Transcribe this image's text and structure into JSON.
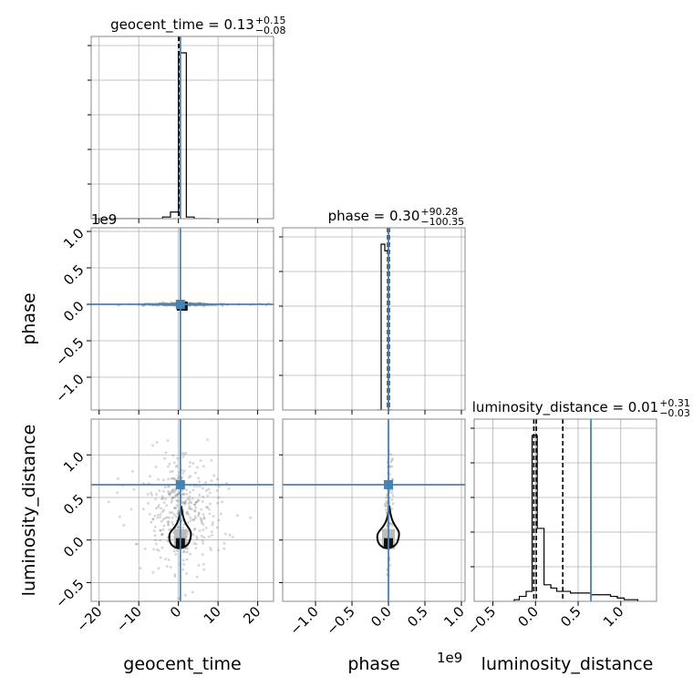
{
  "chart_data": {
    "type": "corner",
    "parameters": [
      "geocent_time",
      "phase",
      "luminosity_distance"
    ],
    "axis_labels": {
      "x": [
        "geocent_time",
        "phase",
        "luminosity_distance"
      ],
      "y": [
        "phase",
        "luminosity_distance"
      ]
    },
    "offset_texts": {
      "phase_y": "1e9",
      "phase_x": "1e9"
    },
    "titles": [
      {
        "param": "geocent_time",
        "text": "geocent_time = 0.13",
        "plus": "+0.15",
        "minus": "−0.08"
      },
      {
        "param": "phase",
        "text": "phase = 0.30",
        "plus": "+90.28",
        "minus": "−100.35"
      },
      {
        "param": "luminosity_distance",
        "text": "luminosity_distance = 0.01",
        "plus": "+0.31",
        "minus": "−0.03"
      }
    ],
    "truths": {
      "geocent_time": 0.5,
      "phase": 0.0,
      "luminosity_distance": 0.65
    },
    "axes": {
      "geocent_time": {
        "range": [
          -22,
          24
        ],
        "ticks": [
          -20,
          -10,
          0,
          10,
          20
        ],
        "tick_labels": [
          "−20",
          "−10",
          "0",
          "10",
          "20"
        ]
      },
      "phase": {
        "range": [
          -1.45,
          1.05
        ],
        "ticks": [
          -1.0,
          -0.5,
          0.0,
          0.5,
          1.0
        ],
        "tick_labels": [
          "−1.0",
          "−0.5",
          "0.0",
          "0.5",
          "1.0"
        ],
        "scale": "1e9"
      },
      "luminosity_distance": {
        "range": [
          -0.72,
          1.42
        ],
        "ticks": [
          -0.5,
          0.0,
          0.5,
          1.0
        ],
        "tick_labels": [
          "−0.5",
          "0.0",
          "0.5",
          "1.0"
        ]
      }
    },
    "hist_1d": {
      "geocent_time": {
        "edges": [
          -22,
          -20,
          -18,
          -16,
          -14,
          -12,
          -10,
          -8,
          -6,
          -4,
          -2,
          0,
          2,
          4,
          6,
          8
        ],
        "values": [
          0,
          0,
          0,
          0,
          0,
          0,
          0,
          0,
          0,
          0.01,
          0.04,
          1.0,
          0.01,
          0,
          0
        ],
        "quantile_lines": [
          0.05,
          0.13,
          0.28
        ]
      },
      "phase": {
        "edges": [
          -0.15,
          -0.1,
          -0.05,
          0.0,
          0.05
        ],
        "values": [
          0,
          1.0,
          0.96,
          0
        ],
        "quantile_lines": [
          -0.01,
          0.0,
          0.01
        ]
      },
      "luminosity_distance": {
        "edges": [
          -0.25,
          -0.19,
          -0.11,
          -0.04,
          0.02,
          0.1,
          0.18,
          0.25,
          0.33,
          0.41,
          0.49,
          0.57,
          0.65,
          0.73,
          0.8,
          0.88,
          0.96,
          1.04,
          1.12,
          1.2
        ],
        "values": [
          0.01,
          0.03,
          0.06,
          1.0,
          0.44,
          0.1,
          0.08,
          0.06,
          0.06,
          0.05,
          0.05,
          0.05,
          0.04,
          0.04,
          0.04,
          0.03,
          0.02,
          0.01,
          0.01
        ],
        "quantile_lines": [
          -0.02,
          0.01,
          0.32
        ]
      }
    },
    "grid": true,
    "scatter_color": "#888888",
    "truth_color": "#4682b4",
    "hist_color": "#000000"
  }
}
